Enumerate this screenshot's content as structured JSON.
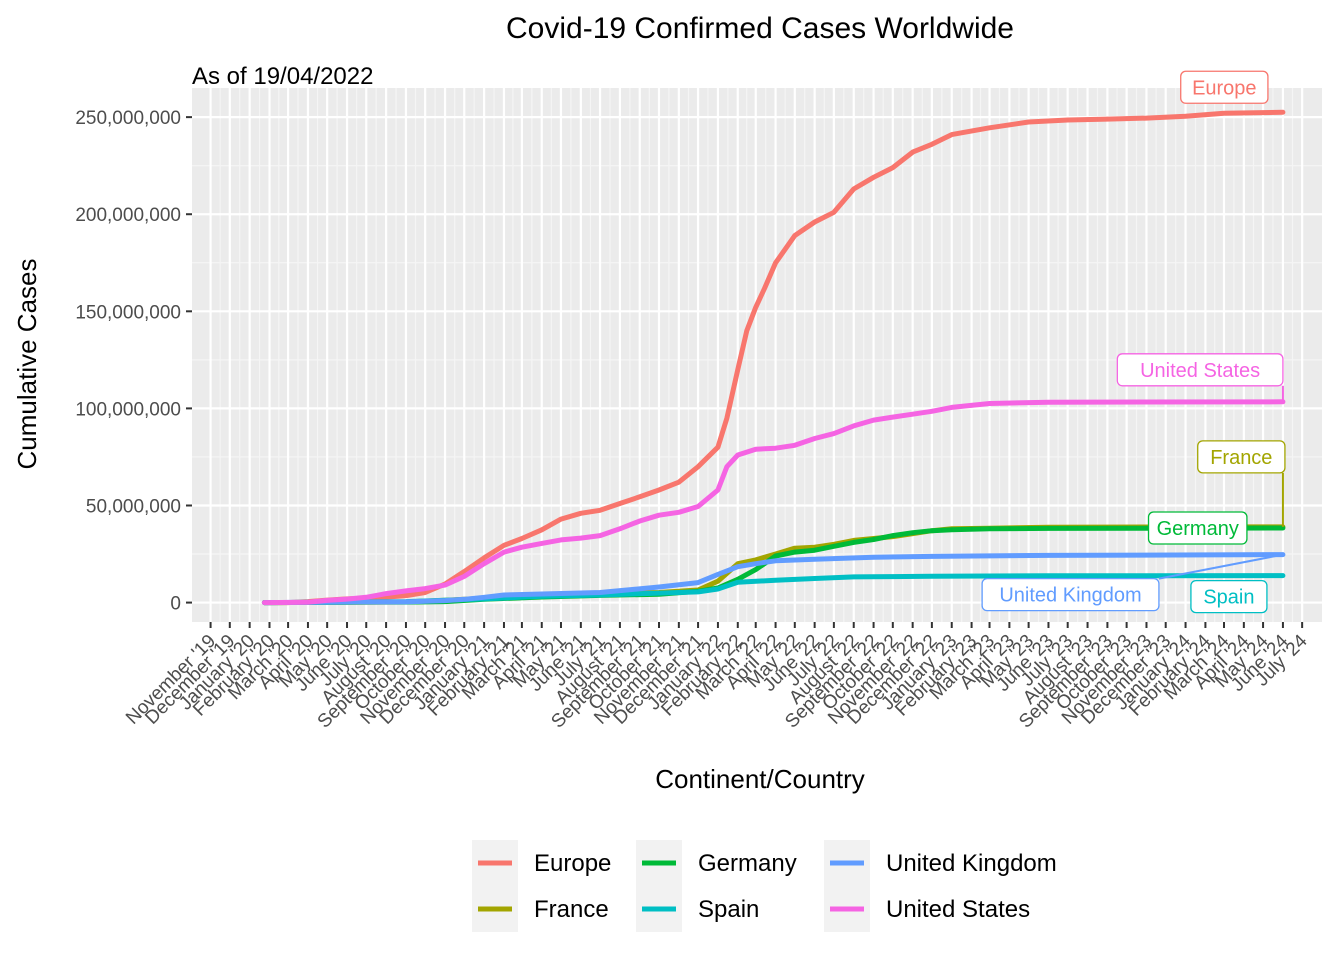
{
  "chart_data": {
    "type": "line",
    "title": "Covid-19 Confirmed Cases Worldwide",
    "subtitle": "As of 19/04/2022",
    "xlabel": "Continent/Country",
    "ylabel": "Cumulative Cases",
    "ylim": [
      -10000000,
      265000000
    ],
    "xlim": [
      "2019-10-03",
      "2024-08-01"
    ],
    "y_ticks": [
      0,
      50000000,
      100000000,
      150000000,
      200000000,
      250000000
    ],
    "y_tick_labels": [
      "0",
      "50,000,000",
      "100,000,000",
      "150,000,000",
      "200,000,000",
      "250,000,000"
    ],
    "x_ticks": [
      {
        "date": "2019-11-01",
        "label": "November '19"
      },
      {
        "date": "2019-12-01",
        "label": "December '19"
      },
      {
        "date": "2020-01-01",
        "label": "January '20"
      },
      {
        "date": "2020-02-01",
        "label": "February '20"
      },
      {
        "date": "2020-03-01",
        "label": "March '20"
      },
      {
        "date": "2020-04-01",
        "label": "April '20"
      },
      {
        "date": "2020-05-01",
        "label": "May '20"
      },
      {
        "date": "2020-06-01",
        "label": "June '20"
      },
      {
        "date": "2020-07-01",
        "label": "July '20"
      },
      {
        "date": "2020-08-01",
        "label": "August '20"
      },
      {
        "date": "2020-09-01",
        "label": "September '20"
      },
      {
        "date": "2020-10-01",
        "label": "October '20"
      },
      {
        "date": "2020-11-01",
        "label": "November '20"
      },
      {
        "date": "2020-12-01",
        "label": "December '20"
      },
      {
        "date": "2021-01-01",
        "label": "January '21"
      },
      {
        "date": "2021-02-01",
        "label": "February '21"
      },
      {
        "date": "2021-03-01",
        "label": "March '21"
      },
      {
        "date": "2021-04-01",
        "label": "April '21"
      },
      {
        "date": "2021-05-01",
        "label": "May '21"
      },
      {
        "date": "2021-06-01",
        "label": "June '21"
      },
      {
        "date": "2021-07-01",
        "label": "July '21"
      },
      {
        "date": "2021-08-01",
        "label": "August '21"
      },
      {
        "date": "2021-09-01",
        "label": "September '21"
      },
      {
        "date": "2021-10-01",
        "label": "October '21"
      },
      {
        "date": "2021-11-01",
        "label": "November '21"
      },
      {
        "date": "2021-12-01",
        "label": "December '21"
      },
      {
        "date": "2022-01-01",
        "label": "January '22"
      },
      {
        "date": "2022-02-01",
        "label": "February '22"
      },
      {
        "date": "2022-03-01",
        "label": "March '22"
      },
      {
        "date": "2022-04-01",
        "label": "April '22"
      },
      {
        "date": "2022-05-01",
        "label": "May '22"
      },
      {
        "date": "2022-06-01",
        "label": "June '22"
      },
      {
        "date": "2022-07-01",
        "label": "July '22"
      },
      {
        "date": "2022-08-01",
        "label": "August '22"
      },
      {
        "date": "2022-09-01",
        "label": "September '22"
      },
      {
        "date": "2022-10-01",
        "label": "October '22"
      },
      {
        "date": "2022-11-01",
        "label": "November '22"
      },
      {
        "date": "2022-12-01",
        "label": "December '22"
      },
      {
        "date": "2023-01-01",
        "label": "January '23"
      },
      {
        "date": "2023-02-01",
        "label": "February '23"
      },
      {
        "date": "2023-03-01",
        "label": "March '23"
      },
      {
        "date": "2023-04-01",
        "label": "April '23"
      },
      {
        "date": "2023-05-01",
        "label": "May '23"
      },
      {
        "date": "2023-06-01",
        "label": "June '23"
      },
      {
        "date": "2023-07-01",
        "label": "July '23"
      },
      {
        "date": "2023-08-01",
        "label": "August '23"
      },
      {
        "date": "2023-09-01",
        "label": "September '23"
      },
      {
        "date": "2023-10-01",
        "label": "October '23"
      },
      {
        "date": "2023-11-01",
        "label": "November '23"
      },
      {
        "date": "2023-12-01",
        "label": "December '23"
      },
      {
        "date": "2024-01-01",
        "label": "January '24"
      },
      {
        "date": "2024-02-01",
        "label": "February '24"
      },
      {
        "date": "2024-03-01",
        "label": "March '24"
      },
      {
        "date": "2024-04-01",
        "label": "April '24"
      },
      {
        "date": "2024-05-01",
        "label": "May '24"
      },
      {
        "date": "2024-06-01",
        "label": "June '24"
      },
      {
        "date": "2024-07-01",
        "label": "July '24"
      }
    ],
    "grid": true,
    "legend_position": "bottom",
    "series": [
      {
        "name": "Europe",
        "color": "#F8766D",
        "label": "Europe",
        "points": [
          [
            "2020-01-24",
            0
          ],
          [
            "2020-03-01",
            0
          ],
          [
            "2020-04-01",
            500000
          ],
          [
            "2020-05-01",
            1300000
          ],
          [
            "2020-06-01",
            1900000
          ],
          [
            "2020-07-01",
            2300000
          ],
          [
            "2020-08-01",
            2800000
          ],
          [
            "2020-09-01",
            3600000
          ],
          [
            "2020-10-01",
            5200000
          ],
          [
            "2020-11-01",
            9500000
          ],
          [
            "2020-12-01",
            16000000
          ],
          [
            "2021-01-01",
            23000000
          ],
          [
            "2021-02-01",
            29500000
          ],
          [
            "2021-03-01",
            33000000
          ],
          [
            "2021-04-01",
            37500000
          ],
          [
            "2021-05-01",
            43000000
          ],
          [
            "2021-06-01",
            46000000
          ],
          [
            "2021-07-01",
            47500000
          ],
          [
            "2021-08-01",
            51000000
          ],
          [
            "2021-09-01",
            54500000
          ],
          [
            "2021-10-01",
            58000000
          ],
          [
            "2021-11-01",
            62000000
          ],
          [
            "2021-12-01",
            70000000
          ],
          [
            "2022-01-01",
            80000000
          ],
          [
            "2022-01-15",
            95000000
          ],
          [
            "2022-02-01",
            120000000
          ],
          [
            "2022-02-15",
            140000000
          ],
          [
            "2022-03-01",
            152000000
          ],
          [
            "2022-03-15",
            162000000
          ],
          [
            "2022-04-01",
            175000000
          ],
          [
            "2022-05-01",
            189000000
          ],
          [
            "2022-06-01",
            196000000
          ],
          [
            "2022-07-01",
            201000000
          ],
          [
            "2022-08-01",
            213000000
          ],
          [
            "2022-09-01",
            219000000
          ],
          [
            "2022-10-01",
            224000000
          ],
          [
            "2022-11-01",
            232000000
          ],
          [
            "2022-12-01",
            236000000
          ],
          [
            "2023-01-01",
            241000000
          ],
          [
            "2023-03-01",
            244500000
          ],
          [
            "2023-05-01",
            247500000
          ],
          [
            "2023-07-01",
            248500000
          ],
          [
            "2023-09-01",
            249000000
          ],
          [
            "2023-11-01",
            249500000
          ],
          [
            "2024-01-01",
            250500000
          ],
          [
            "2024-03-01",
            252000000
          ],
          [
            "2024-06-01",
            252500000
          ]
        ]
      },
      {
        "name": "France",
        "color": "#A3A500",
        "label": "France",
        "points": [
          [
            "2020-01-24",
            0
          ],
          [
            "2020-06-01",
            150000
          ],
          [
            "2020-09-01",
            300000
          ],
          [
            "2020-11-01",
            1200000
          ],
          [
            "2021-01-01",
            2200000
          ],
          [
            "2021-04-01",
            3500000
          ],
          [
            "2021-07-01",
            4800000
          ],
          [
            "2021-10-01",
            5200000
          ],
          [
            "2021-12-01",
            6500000
          ],
          [
            "2022-01-01",
            11000000
          ],
          [
            "2022-02-01",
            20000000
          ],
          [
            "2022-03-01",
            22000000
          ],
          [
            "2022-04-01",
            25000000
          ],
          [
            "2022-05-01",
            28000000
          ],
          [
            "2022-06-01",
            28500000
          ],
          [
            "2022-07-01",
            30000000
          ],
          [
            "2022-08-01",
            32000000
          ],
          [
            "2022-09-01",
            33000000
          ],
          [
            "2022-10-01",
            34000000
          ],
          [
            "2022-11-01",
            35500000
          ],
          [
            "2022-12-01",
            37000000
          ],
          [
            "2023-01-01",
            38000000
          ],
          [
            "2023-03-01",
            38300000
          ],
          [
            "2023-06-01",
            38800000
          ],
          [
            "2024-01-01",
            39000000
          ],
          [
            "2024-06-01",
            39000000
          ]
        ]
      },
      {
        "name": "Germany",
        "color": "#00BA38",
        "label": "Germany",
        "points": [
          [
            "2020-01-24",
            0
          ],
          [
            "2020-06-01",
            180000
          ],
          [
            "2020-09-01",
            260000
          ],
          [
            "2020-11-01",
            500000
          ],
          [
            "2021-01-01",
            1700000
          ],
          [
            "2021-04-01",
            2900000
          ],
          [
            "2021-07-01",
            3700000
          ],
          [
            "2021-10-01",
            4300000
          ],
          [
            "2021-12-01",
            5800000
          ],
          [
            "2022-01-01",
            7500000
          ],
          [
            "2022-02-01",
            12000000
          ],
          [
            "2022-03-01",
            17000000
          ],
          [
            "2022-04-01",
            24000000
          ],
          [
            "2022-05-01",
            26000000
          ],
          [
            "2022-06-01",
            27000000
          ],
          [
            "2022-07-01",
            29000000
          ],
          [
            "2022-08-01",
            31000000
          ],
          [
            "2022-09-01",
            32500000
          ],
          [
            "2022-10-01",
            34500000
          ],
          [
            "2022-11-01",
            36000000
          ],
          [
            "2022-12-01",
            37000000
          ],
          [
            "2023-01-01",
            37500000
          ],
          [
            "2023-03-01",
            38000000
          ],
          [
            "2023-06-01",
            38200000
          ],
          [
            "2024-01-01",
            38300000
          ],
          [
            "2024-06-01",
            38400000
          ]
        ]
      },
      {
        "name": "Spain",
        "color": "#00BFC4",
        "label": "Spain",
        "points": [
          [
            "2020-01-24",
            0
          ],
          [
            "2020-06-01",
            240000
          ],
          [
            "2020-09-01",
            500000
          ],
          [
            "2020-11-01",
            1200000
          ],
          [
            "2021-01-01",
            1900000
          ],
          [
            "2021-04-01",
            3300000
          ],
          [
            "2021-07-01",
            3900000
          ],
          [
            "2021-10-01",
            4900000
          ],
          [
            "2021-12-01",
            5500000
          ],
          [
            "2022-01-01",
            7000000
          ],
          [
            "2022-02-01",
            10500000
          ],
          [
            "2022-04-01",
            11500000
          ],
          [
            "2022-06-01",
            12400000
          ],
          [
            "2022-08-01",
            13200000
          ],
          [
            "2022-10-01",
            13400000
          ],
          [
            "2022-12-01",
            13600000
          ],
          [
            "2023-06-01",
            13800000
          ],
          [
            "2024-06-01",
            13900000
          ]
        ]
      },
      {
        "name": "United Kingdom",
        "color": "#619CFF",
        "label": "United Kingdom",
        "points": [
          [
            "2020-01-24",
            0
          ],
          [
            "2020-06-01",
            280000
          ],
          [
            "2020-09-01",
            350000
          ],
          [
            "2020-11-01",
            1000000
          ],
          [
            "2020-12-01",
            1700000
          ],
          [
            "2021-01-01",
            2700000
          ],
          [
            "2021-02-01",
            3900000
          ],
          [
            "2021-04-01",
            4400000
          ],
          [
            "2021-07-01",
            5200000
          ],
          [
            "2021-10-01",
            8000000
          ],
          [
            "2021-12-01",
            10300000
          ],
          [
            "2022-01-01",
            14500000
          ],
          [
            "2022-02-01",
            18500000
          ],
          [
            "2022-03-01",
            20000000
          ],
          [
            "2022-04-01",
            21500000
          ],
          [
            "2022-06-01",
            22300000
          ],
          [
            "2022-09-01",
            23300000
          ],
          [
            "2022-12-01",
            23800000
          ],
          [
            "2023-06-01",
            24300000
          ],
          [
            "2024-06-01",
            24700000
          ]
        ]
      },
      {
        "name": "United States",
        "color": "#F564E3",
        "label": "United States",
        "points": [
          [
            "2020-01-24",
            0
          ],
          [
            "2020-04-01",
            200000
          ],
          [
            "2020-05-01",
            1100000
          ],
          [
            "2020-06-01",
            1800000
          ],
          [
            "2020-07-01",
            2700000
          ],
          [
            "2020-08-01",
            4600000
          ],
          [
            "2020-09-01",
            6000000
          ],
          [
            "2020-10-01",
            7200000
          ],
          [
            "2020-11-01",
            9000000
          ],
          [
            "2020-12-01",
            13500000
          ],
          [
            "2021-01-01",
            20000000
          ],
          [
            "2021-02-01",
            26000000
          ],
          [
            "2021-03-01",
            28500000
          ],
          [
            "2021-04-01",
            30500000
          ],
          [
            "2021-05-01",
            32300000
          ],
          [
            "2021-06-01",
            33200000
          ],
          [
            "2021-07-01",
            34500000
          ],
          [
            "2021-08-01",
            38000000
          ],
          [
            "2021-09-01",
            42000000
          ],
          [
            "2021-10-01",
            45000000
          ],
          [
            "2021-11-01",
            46500000
          ],
          [
            "2021-12-01",
            49500000
          ],
          [
            "2022-01-01",
            58000000
          ],
          [
            "2022-01-15",
            70000000
          ],
          [
            "2022-02-01",
            76000000
          ],
          [
            "2022-03-01",
            79000000
          ],
          [
            "2022-04-01",
            79500000
          ],
          [
            "2022-05-01",
            81000000
          ],
          [
            "2022-06-01",
            84500000
          ],
          [
            "2022-07-01",
            87000000
          ],
          [
            "2022-08-01",
            91000000
          ],
          [
            "2022-09-01",
            94000000
          ],
          [
            "2022-10-01",
            95500000
          ],
          [
            "2022-11-01",
            97000000
          ],
          [
            "2022-12-01",
            98500000
          ],
          [
            "2023-01-01",
            100500000
          ],
          [
            "2023-03-01",
            102500000
          ],
          [
            "2023-06-01",
            103200000
          ],
          [
            "2024-06-01",
            103400000
          ]
        ]
      }
    ],
    "legend_order": [
      "Europe",
      "France",
      "Germany",
      "Spain",
      "United Kingdom",
      "United States"
    ]
  }
}
